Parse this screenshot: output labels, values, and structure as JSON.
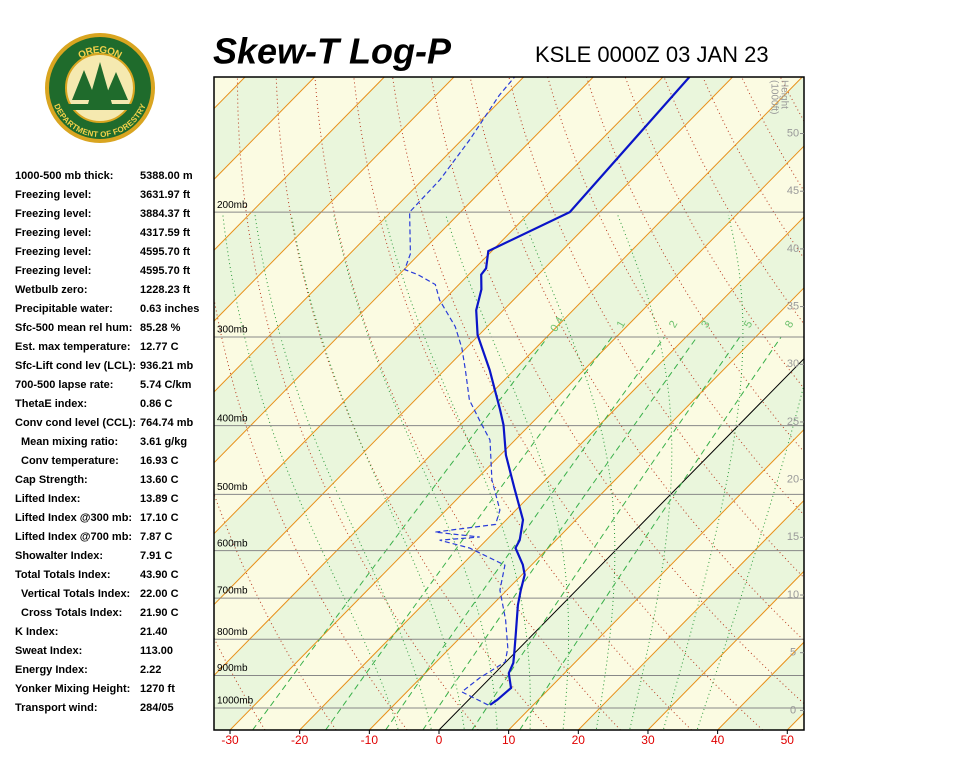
{
  "header": {
    "title": "Skew-T Log-P",
    "station": "KSLE 0000Z 03 JAN 23"
  },
  "logo": {
    "top": "OREGON",
    "bottom": "DEPARTMENT OF FORESTRY"
  },
  "indices": [
    [
      "1000-500 mb thick:",
      "5388.00 m"
    ],
    [
      "Freezing level:",
      "3631.97 ft"
    ],
    [
      "Freezing level:",
      "3884.37 ft"
    ],
    [
      "Freezing level:",
      "4317.59 ft"
    ],
    [
      "Freezing level:",
      "4595.70 ft"
    ],
    [
      "Freezing level:",
      "4595.70 ft"
    ],
    [
      "Wetbulb zero:",
      "1228.23 ft"
    ],
    [
      "Precipitable water:",
      "0.63 inches"
    ],
    [
      "Sfc-500 mean rel hum:",
      "85.28 %"
    ],
    [
      "Est. max temperature:",
      "12.77 C"
    ],
    [
      "Sfc-Lift cond lev (LCL):",
      "936.21 mb"
    ],
    [
      "700-500 lapse rate:",
      "5.74 C/km"
    ],
    [
      "ThetaE index:",
      "0.86 C"
    ],
    [
      "Conv cond level (CCL):",
      "764.74 mb"
    ],
    [
      "Mean mixing ratio:",
      "3.61 g/kg"
    ],
    [
      "Conv temperature:",
      "16.93 C"
    ],
    [
      "Cap Strength:",
      "13.60 C"
    ],
    [
      "Lifted Index:",
      "13.89 C"
    ],
    [
      "Lifted Index @300 mb:",
      "17.10 C"
    ],
    [
      "Lifted Index @700 mb:",
      "7.87 C"
    ],
    [
      "Showalter Index:",
      "7.91 C"
    ],
    [
      "Total Totals Index:",
      "43.90 C"
    ],
    [
      "Vertical Totals Index:",
      "22.00 C"
    ],
    [
      "Cross Totals Index:",
      "21.90 C"
    ],
    [
      "K Index:",
      "21.40"
    ],
    [
      "Sweat Index:",
      "113.00"
    ],
    [
      "Energy Index:",
      "2.22"
    ],
    [
      "Yonker Mixing Height:",
      "1270 ft"
    ],
    [
      "Transport wind:",
      "284/05"
    ]
  ],
  "chart_data": {
    "type": "skewt",
    "xlim": [
      -32.3,
      52.4
    ],
    "xticks": [
      -30,
      -20,
      -10,
      0,
      10,
      20,
      30,
      40,
      50
    ],
    "ylim": [
      1074,
      129
    ],
    "log_scale": true,
    "yticks": [
      {
        "value": 200,
        "label": "200mb"
      },
      {
        "value": 300,
        "label": "300mb"
      },
      {
        "value": 400,
        "label": "400mb"
      },
      {
        "value": 500,
        "label": "500mb"
      },
      {
        "value": 600,
        "label": "600mb"
      },
      {
        "value": 700,
        "label": "700mb"
      },
      {
        "value": 800,
        "label": "800mb"
      },
      {
        "value": 900,
        "label": "900mb"
      },
      {
        "value": 1000,
        "label": "1000mb"
      }
    ],
    "y2_label": [
      "Height",
      "(1000ft)"
    ],
    "y2lim": [
      -1.7,
      54.9
    ],
    "y2ticks": [
      0,
      5,
      10,
      15,
      20,
      25,
      30,
      35,
      40,
      45,
      50
    ],
    "mixing_ratios": [
      0.4,
      1,
      2,
      3,
      5,
      8
    ],
    "temperature": {
      "color": "#0a14c8",
      "pressure": [
        990,
        974,
        937,
        893,
        864,
        842,
        789,
        716,
        682,
        649,
        628,
        595,
        580,
        543,
        490,
        440,
        399,
        380,
        334,
        298,
        275,
        257,
        245,
        240,
        227,
        200,
        129
      ],
      "values": [
        3.8,
        4.1,
        4.4,
        2.0,
        1.2,
        0.2,
        -2.4,
        -6.3,
        -8.0,
        -9.6,
        -11.3,
        -14.7,
        -15.2,
        -17.6,
        -23.3,
        -29.2,
        -33.8,
        -36.4,
        -43.5,
        -50.2,
        -53.9,
        -56.1,
        -58.2,
        -58.4,
        -60.5,
        -54.3,
        -56.2
      ]
    },
    "dewpoint": {
      "color": "#2a3cd8",
      "pressure": [
        990,
        949,
        907,
        861,
        823,
        751,
        682,
        629,
        595,
        580,
        574,
        565,
        551,
        526,
        477,
        419,
        393,
        368,
        334,
        311,
        290,
        266,
        253,
        245,
        241,
        229,
        200,
        180,
        158,
        137,
        129
      ],
      "values": [
        3.5,
        -2.1,
        -1.5,
        -0.1,
        -1.7,
        -6.0,
        -11.0,
        -13.8,
        -21.3,
        -26.7,
        -21.4,
        -28.5,
        -20.9,
        -22.3,
        -27.7,
        -33.6,
        -37.9,
        -42.2,
        -47.0,
        -50.6,
        -54.6,
        -60.6,
        -63.4,
        -67.3,
        -69.9,
        -71.3,
        -77.3,
        -77.5,
        -78.9,
        -80.9,
        -81.3
      ]
    }
  }
}
